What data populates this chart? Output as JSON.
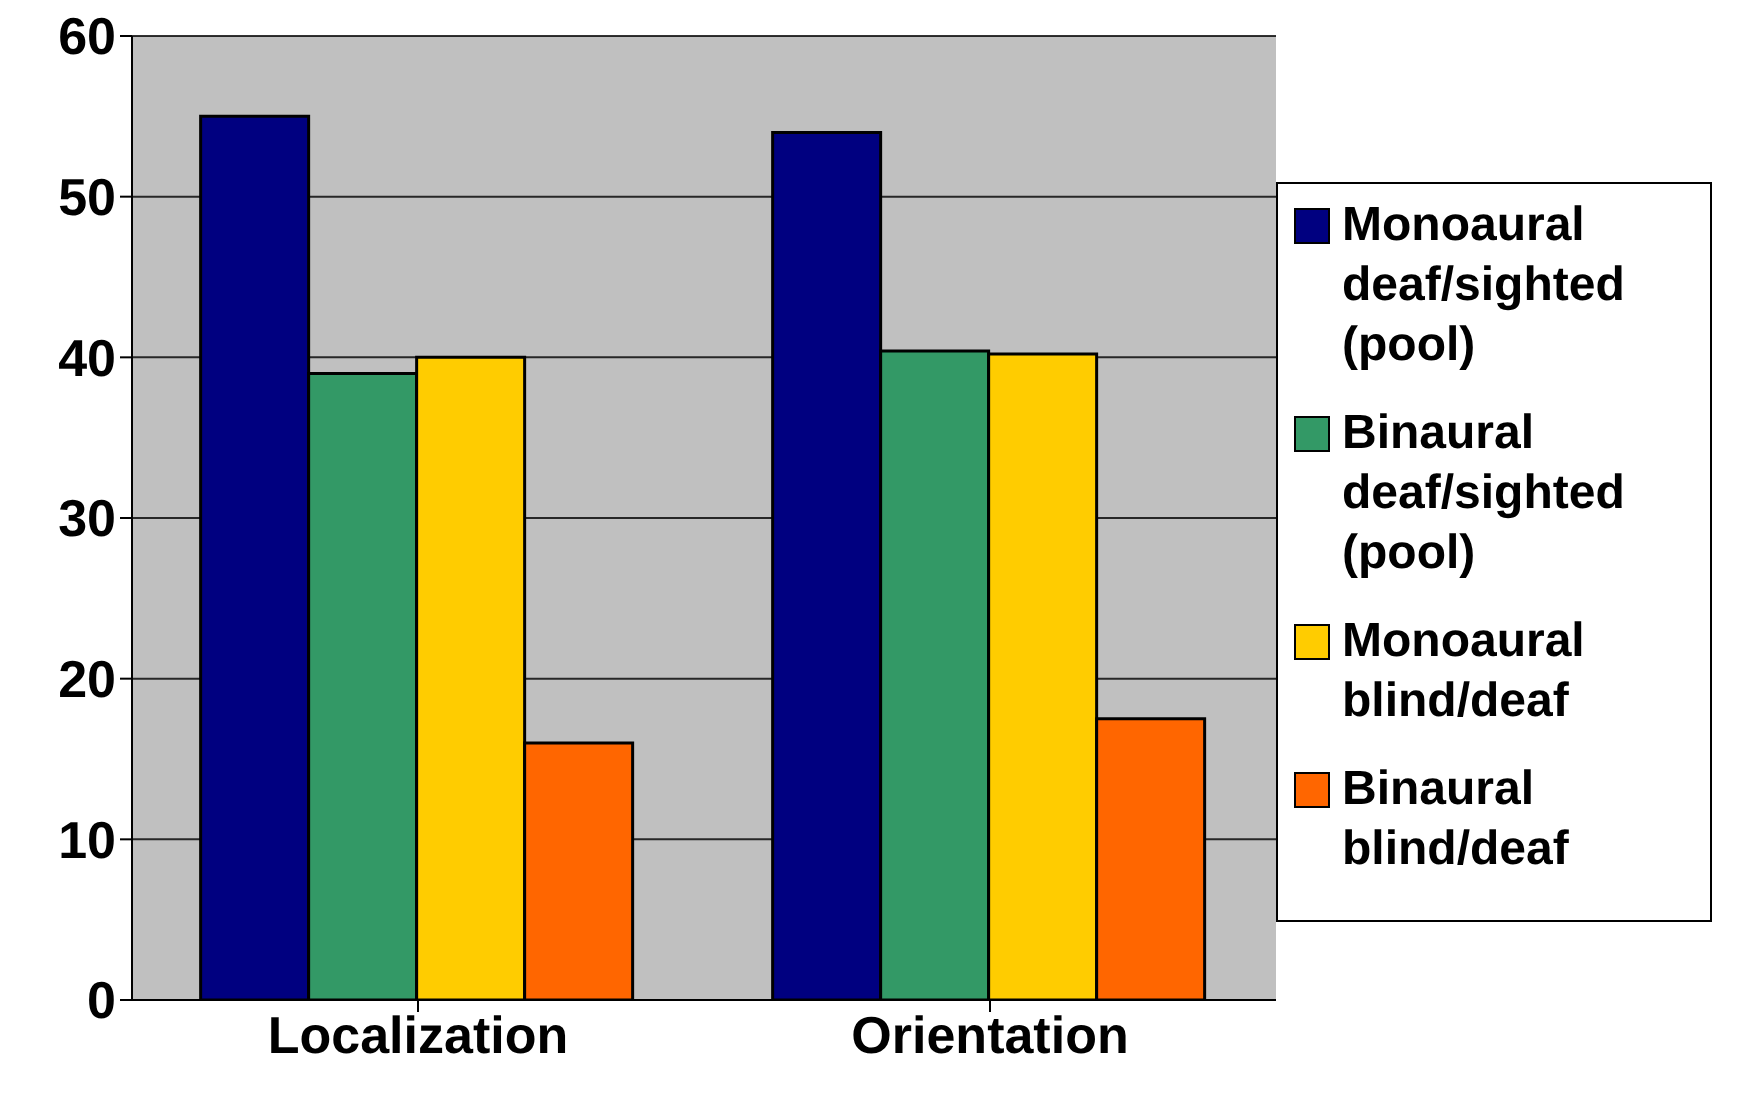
{
  "chart_data": {
    "type": "bar",
    "categories": [
      "Localization",
      "Orientation"
    ],
    "series": [
      {
        "name": "Monoaural deaf/sighted (pool)",
        "color": "#000080",
        "values": [
          55,
          54
        ]
      },
      {
        "name": "Binaural deaf/sighted (pool)",
        "color": "#339966",
        "values": [
          39,
          40.4
        ]
      },
      {
        "name": "Monoaural blind/deaf",
        "color": "#ffcc00",
        "values": [
          40,
          40.2
        ]
      },
      {
        "name": "Binaural blind/deaf",
        "color": "#ff6600",
        "values": [
          16,
          17.5
        ]
      }
    ],
    "ylim": [
      0,
      60
    ],
    "yticks": [
      0,
      10,
      20,
      30,
      40,
      50,
      60
    ],
    "grid": "y",
    "legend": "right"
  }
}
